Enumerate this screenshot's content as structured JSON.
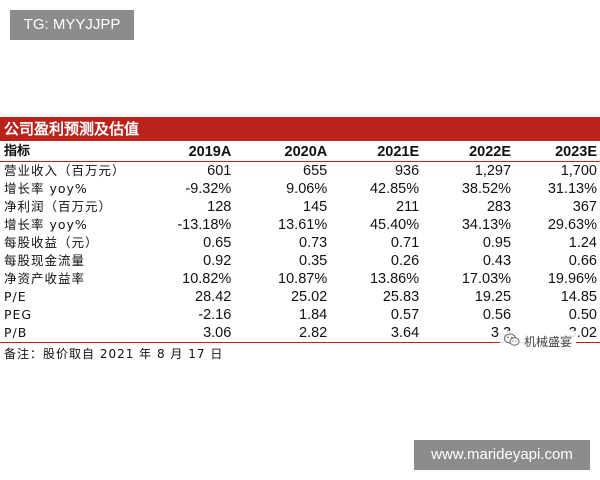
{
  "watermark_top": "TG: MYYJJPP",
  "title": "公司盈利预测及估值",
  "header": {
    "label": "指标",
    "years": [
      "2019A",
      "2020A",
      "2021E",
      "2022E",
      "2023E"
    ]
  },
  "rows": [
    {
      "label": "营业收入（百万元）",
      "values": [
        "601",
        "655",
        "936",
        "1,297",
        "1,700"
      ]
    },
    {
      "label": "增长率 yoy%",
      "values": [
        "-9.32%",
        "9.06%",
        "42.85%",
        "38.52%",
        "31.13%"
      ]
    },
    {
      "label": "净利润（百万元）",
      "values": [
        "128",
        "145",
        "211",
        "283",
        "367"
      ]
    },
    {
      "label": "增长率 yoy%",
      "values": [
        "-13.18%",
        "13.61%",
        "45.40%",
        "34.13%",
        "29.63%"
      ]
    },
    {
      "label": "每股收益（元）",
      "values": [
        "0.65",
        "0.73",
        "0.71",
        "0.95",
        "1.24"
      ]
    },
    {
      "label": "每股现金流量",
      "values": [
        "0.92",
        "0.35",
        "0.26",
        "0.43",
        "0.66"
      ]
    },
    {
      "label": "净资产收益率",
      "values": [
        "10.82%",
        "10.87%",
        "13.86%",
        "17.03%",
        "19.96%"
      ]
    },
    {
      "label": "P/E",
      "values": [
        "28.42",
        "25.02",
        "25.83",
        "19.25",
        "14.85"
      ]
    },
    {
      "label": "PEG",
      "values": [
        "-2.16",
        "1.84",
        "0.57",
        "0.56",
        "0.50"
      ]
    },
    {
      "label": "P/B",
      "values": [
        "3.06",
        "2.82",
        "3.64",
        "3.3",
        "3.02"
      ]
    }
  ],
  "footnote": "备注：股价取自 2021 年 8 月 17 日",
  "wechat_watermark": "机械盛宴",
  "watermark_bottom": "www.marideyapi.com",
  "colors": {
    "accent_red": "#b8231c",
    "badge_gray": "#8c8c8c"
  }
}
